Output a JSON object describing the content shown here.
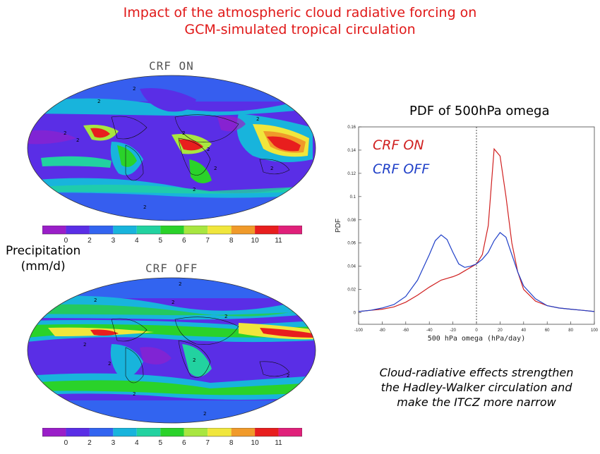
{
  "title": {
    "line1": "Impact of the atmospheric cloud radiative forcing on",
    "line2": "GCM-simulated tropical circulation"
  },
  "maps": {
    "top_label": "CRF ON",
    "bottom_label": "CRF OFF",
    "contour_marker": "2",
    "colorbar_ticks": [
      "0",
      "2",
      "3",
      "4",
      "5",
      "6",
      "7",
      "8",
      "10",
      "11"
    ],
    "colorbar_colors": [
      "#9a1ec8",
      "#5a2ee6",
      "#3264f0",
      "#18b4dc",
      "#22d2a0",
      "#2ad22a",
      "#a8e640",
      "#f0e63c",
      "#f09a2a",
      "#e81e1e",
      "#e0207a"
    ]
  },
  "precipitation": {
    "line1": "Precipitation",
    "line2": "(mm/d)"
  },
  "caption": {
    "line1": "Cloud-radiative effects strengthen",
    "line2": "the Hadley-Walker circulation and",
    "line3": "make the ITCZ more narrow"
  },
  "chart_data": {
    "type": "line",
    "title": "PDF of 500hPa omega",
    "xlabel": "500 hPa omega (hPa/day)",
    "ylabel": "PDF",
    "xlim": [
      -100,
      100
    ],
    "ylim": [
      -0.01,
      0.16
    ],
    "xticks": [
      -100,
      -80,
      -60,
      -40,
      -20,
      0,
      20,
      40,
      60,
      80,
      100
    ],
    "yticks": [
      0,
      0.02,
      0.04,
      0.06,
      0.08,
      0.1,
      0.12,
      0.14,
      0.16
    ],
    "xtick_labels": [
      "-100",
      "-80",
      "-60",
      "-40",
      "-20",
      "0",
      "20",
      "40",
      "60",
      "80",
      "100"
    ],
    "ytick_labels": [
      "0",
      "0.02",
      "0.04",
      "0.06",
      "0.08",
      "0.1",
      "0.12",
      "0.14",
      "0.16"
    ],
    "zero_line": true,
    "legend_placement": "top-left",
    "series": [
      {
        "name": "CRF ON",
        "color": "#d02020",
        "x": [
          -100,
          -90,
          -80,
          -70,
          -60,
          -50,
          -40,
          -30,
          -20,
          -15,
          -10,
          -5,
          0,
          5,
          10,
          15,
          20,
          25,
          30,
          35,
          40,
          50,
          60,
          70,
          80,
          90,
          100
        ],
        "y": [
          0.001,
          0.002,
          0.003,
          0.005,
          0.009,
          0.015,
          0.022,
          0.028,
          0.031,
          0.033,
          0.036,
          0.039,
          0.042,
          0.05,
          0.075,
          0.141,
          0.135,
          0.1,
          0.06,
          0.035,
          0.02,
          0.01,
          0.006,
          0.004,
          0.003,
          0.002,
          0.001
        ]
      },
      {
        "name": "CRF OFF",
        "color": "#2040c8",
        "x": [
          -100,
          -90,
          -80,
          -70,
          -60,
          -50,
          -40,
          -35,
          -30,
          -25,
          -20,
          -15,
          -10,
          -5,
          0,
          5,
          10,
          15,
          20,
          25,
          30,
          35,
          40,
          50,
          60,
          70,
          80,
          90,
          100
        ],
        "y": [
          0.001,
          0.002,
          0.004,
          0.007,
          0.014,
          0.028,
          0.05,
          0.062,
          0.067,
          0.063,
          0.052,
          0.042,
          0.039,
          0.04,
          0.042,
          0.046,
          0.052,
          0.062,
          0.069,
          0.065,
          0.05,
          0.035,
          0.023,
          0.012,
          0.006,
          0.004,
          0.003,
          0.002,
          0.001
        ]
      }
    ]
  }
}
